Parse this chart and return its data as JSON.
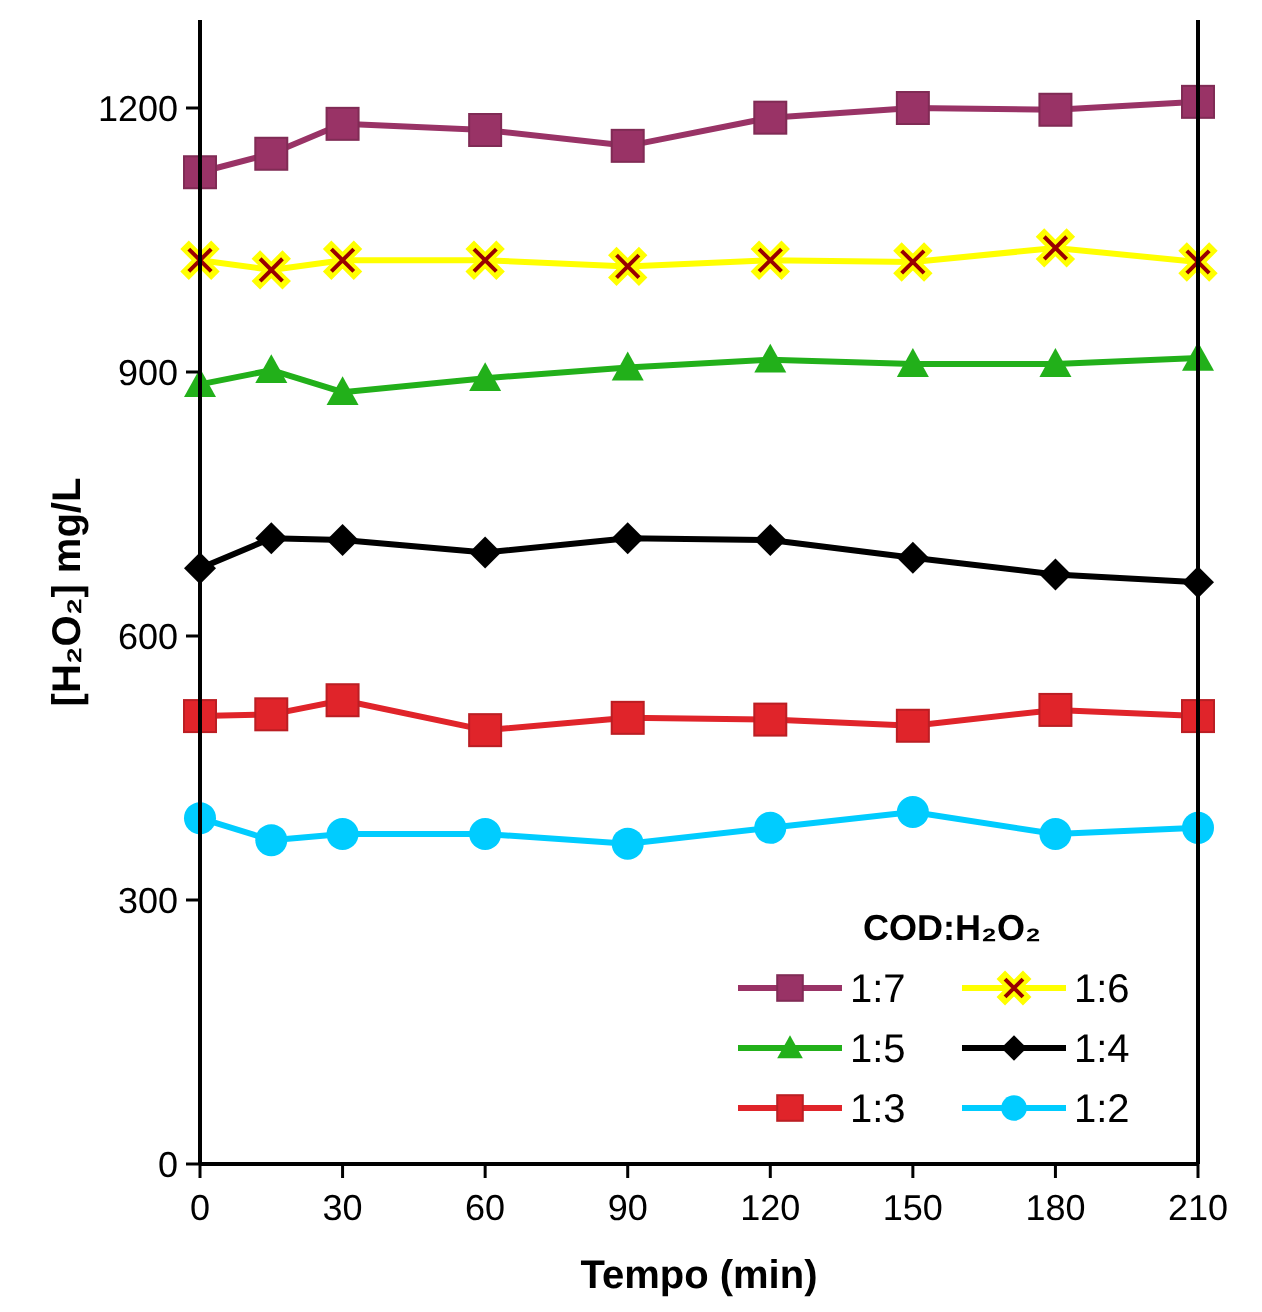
{
  "chart_data": {
    "type": "line",
    "xlabel": "Tempo (min)",
    "ylabel": "[H₂O₂] mg/L",
    "legend_title": "COD:H₂O₂",
    "legend": "bottom right",
    "x": [
      0,
      15,
      30,
      60,
      90,
      120,
      150,
      180,
      210
    ],
    "xlim": [
      0,
      210
    ],
    "xticks": [
      0,
      30,
      60,
      90,
      120,
      150,
      180,
      210
    ],
    "ylim": [
      0,
      1300
    ],
    "yticks": [
      0,
      300,
      600,
      900,
      1200
    ],
    "grid": false,
    "series": [
      {
        "name": "1:7",
        "color": "#993366",
        "marker": "square",
        "values": [
          1127,
          1148,
          1182,
          1175,
          1157,
          1189,
          1200,
          1198,
          1207
        ]
      },
      {
        "name": "1:6",
        "color": "#ffff00",
        "marker": "cross",
        "values": [
          1027,
          1016,
          1027,
          1027,
          1020,
          1027,
          1025,
          1041,
          1025
        ]
      },
      {
        "name": "1:5",
        "color": "#22b01a",
        "marker": "triangle",
        "values": [
          886,
          902,
          877,
          893,
          905,
          914,
          909,
          909,
          916
        ]
      },
      {
        "name": "1:4",
        "color": "#000000",
        "marker": "diamond",
        "values": [
          677,
          711,
          709,
          695,
          711,
          709,
          689,
          670,
          661
        ]
      },
      {
        "name": "1:3",
        "color": "#e0242a",
        "marker": "square",
        "values": [
          509,
          511,
          527,
          493,
          507,
          505,
          498,
          516,
          509
        ]
      },
      {
        "name": "1:2",
        "color": "#00ccff",
        "marker": "circle",
        "values": [
          393,
          368,
          375,
          375,
          364,
          382,
          400,
          375,
          382
        ]
      }
    ]
  }
}
